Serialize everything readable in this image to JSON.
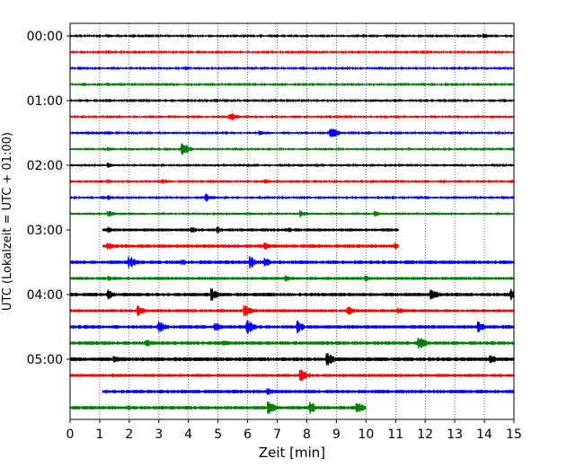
{
  "chart_data": {
    "type": "line",
    "title": "",
    "xlabel": "Zeit  [min]",
    "ylabel": "UTC (Lokalzeit = UTC + 01:00)",
    "xlim": [
      0,
      15
    ],
    "x_ticks": [
      "0",
      "1",
      "2",
      "3",
      "4",
      "5",
      "6",
      "7",
      "8",
      "9",
      "10",
      "11",
      "12",
      "13",
      "14",
      "15"
    ],
    "y_tick_labels": [
      "00:00",
      "01:00",
      "02:00",
      "03:00",
      "04:00",
      "05:00"
    ],
    "vertical_grid": true,
    "trace_colors": [
      "#000000",
      "#ff0000",
      "#0000ff",
      "#008000"
    ],
    "traces": [
      {
        "row": 0,
        "start": 0.0,
        "end": 15.0,
        "amplitude": 0.1,
        "events": [
          [
            1.3,
            0.25
          ],
          [
            14.0,
            0.35
          ]
        ]
      },
      {
        "row": 1,
        "start": 0.0,
        "end": 15.0,
        "amplitude": 0.1,
        "events": [
          [
            1.3,
            0.25
          ],
          [
            11.0,
            0.25
          ]
        ]
      },
      {
        "row": 2,
        "start": 0.0,
        "end": 15.0,
        "amplitude": 0.1,
        "events": [
          [
            1.3,
            0.2
          ]
        ]
      },
      {
        "row": 3,
        "start": 0.0,
        "end": 15.0,
        "amplitude": 0.1,
        "events": [
          [
            1.3,
            0.25
          ]
        ]
      },
      {
        "row": 4,
        "start": 0.0,
        "end": 15.0,
        "amplitude": 0.1,
        "events": [
          [
            1.3,
            0.25
          ]
        ]
      },
      {
        "row": 5,
        "start": 0.0,
        "end": 15.0,
        "amplitude": 0.12,
        "events": [
          [
            1.3,
            0.25
          ],
          [
            5.4,
            0.7
          ]
        ]
      },
      {
        "row": 6,
        "start": 0.0,
        "end": 15.0,
        "amplitude": 0.12,
        "events": [
          [
            1.3,
            0.25
          ],
          [
            6.4,
            0.35
          ],
          [
            8.8,
            1.0
          ]
        ]
      },
      {
        "row": 7,
        "start": 0.0,
        "end": 15.0,
        "amplitude": 0.12,
        "events": [
          [
            1.3,
            0.3
          ],
          [
            3.8,
            1.0
          ]
        ]
      },
      {
        "row": 8,
        "start": 0.0,
        "end": 15.0,
        "amplitude": 0.12,
        "events": [
          [
            1.3,
            0.35
          ]
        ]
      },
      {
        "row": 9,
        "start": 0.0,
        "end": 15.0,
        "amplitude": 0.12,
        "events": [
          [
            1.3,
            0.3
          ],
          [
            3.1,
            0.45
          ],
          [
            6.6,
            0.35
          ]
        ]
      },
      {
        "row": 10,
        "start": 0.0,
        "end": 15.0,
        "amplitude": 0.12,
        "events": [
          [
            1.3,
            0.35
          ],
          [
            4.6,
            0.6
          ]
        ]
      },
      {
        "row": 11,
        "start": 0.0,
        "end": 15.0,
        "amplitude": 0.15,
        "events": [
          [
            1.3,
            0.5
          ],
          [
            7.8,
            0.5
          ],
          [
            10.3,
            0.4
          ]
        ]
      },
      {
        "row": 12,
        "start": 1.1,
        "end": 11.1,
        "amplitude": 0.22,
        "events": [
          [
            1.3,
            0.5
          ],
          [
            4.1,
            0.5
          ],
          [
            5.0,
            0.5
          ],
          [
            7.4,
            0.4
          ]
        ]
      },
      {
        "row": 13,
        "start": 1.1,
        "end": 11.1,
        "amplitude": 0.24,
        "events": [
          [
            1.3,
            0.5
          ],
          [
            6.6,
            0.5
          ],
          [
            11.0,
            0.45
          ]
        ]
      },
      {
        "row": 14,
        "start": 0.0,
        "end": 15.0,
        "amplitude": 0.25,
        "events": [
          [
            2.0,
            1.0
          ],
          [
            3.8,
            0.45
          ],
          [
            6.1,
            0.9
          ],
          [
            6.6,
            0.65
          ]
        ]
      },
      {
        "row": 15,
        "start": 0.0,
        "end": 15.0,
        "amplitude": 0.22,
        "events": [
          [
            1.3,
            0.5
          ],
          [
            7.3,
            0.55
          ],
          [
            10.0,
            0.4
          ]
        ]
      },
      {
        "row": 16,
        "start": 0.0,
        "end": 15.0,
        "amplitude": 0.25,
        "events": [
          [
            1.3,
            0.7
          ],
          [
            4.8,
            0.9
          ],
          [
            12.2,
            0.85
          ],
          [
            14.9,
            0.85
          ]
        ]
      },
      {
        "row": 17,
        "start": 0.0,
        "end": 15.0,
        "amplitude": 0.22,
        "events": [
          [
            2.3,
            0.75
          ],
          [
            5.9,
            1.0
          ],
          [
            9.4,
            0.7
          ],
          [
            11.1,
            0.5
          ]
        ]
      },
      {
        "row": 18,
        "start": 0.0,
        "end": 15.0,
        "amplitude": 0.25,
        "events": [
          [
            3.0,
            1.0
          ],
          [
            4.9,
            0.75
          ],
          [
            6.0,
            1.0
          ],
          [
            7.7,
            0.95
          ],
          [
            13.8,
            0.75
          ]
        ]
      },
      {
        "row": 19,
        "start": 0.0,
        "end": 15.0,
        "amplitude": 0.25,
        "events": [
          [
            2.6,
            0.65
          ],
          [
            11.8,
            1.0
          ],
          [
            5.2,
            0.45
          ]
        ]
      },
      {
        "row": 20,
        "start": 0.0,
        "end": 15.0,
        "amplitude": 0.28,
        "events": [
          [
            8.7,
            0.95
          ],
          [
            14.2,
            0.75
          ],
          [
            1.5,
            0.5
          ]
        ]
      },
      {
        "row": 21,
        "start": 0.0,
        "end": 15.0,
        "amplitude": 0.22,
        "events": [
          [
            7.8,
            0.95
          ],
          [
            1.4,
            0.35
          ]
        ]
      },
      {
        "row": 22,
        "start": 1.1,
        "end": 15.0,
        "amplitude": 0.25,
        "events": [
          [
            6.7,
            0.5
          ],
          [
            8.1,
            0.3
          ]
        ]
      },
      {
        "row": 23,
        "start": 0.0,
        "end": 10.0,
        "amplitude": 0.25,
        "events": [
          [
            6.7,
            1.0
          ],
          [
            8.1,
            0.95
          ],
          [
            9.7,
            0.9
          ],
          [
            2.0,
            0.4
          ]
        ]
      }
    ]
  }
}
